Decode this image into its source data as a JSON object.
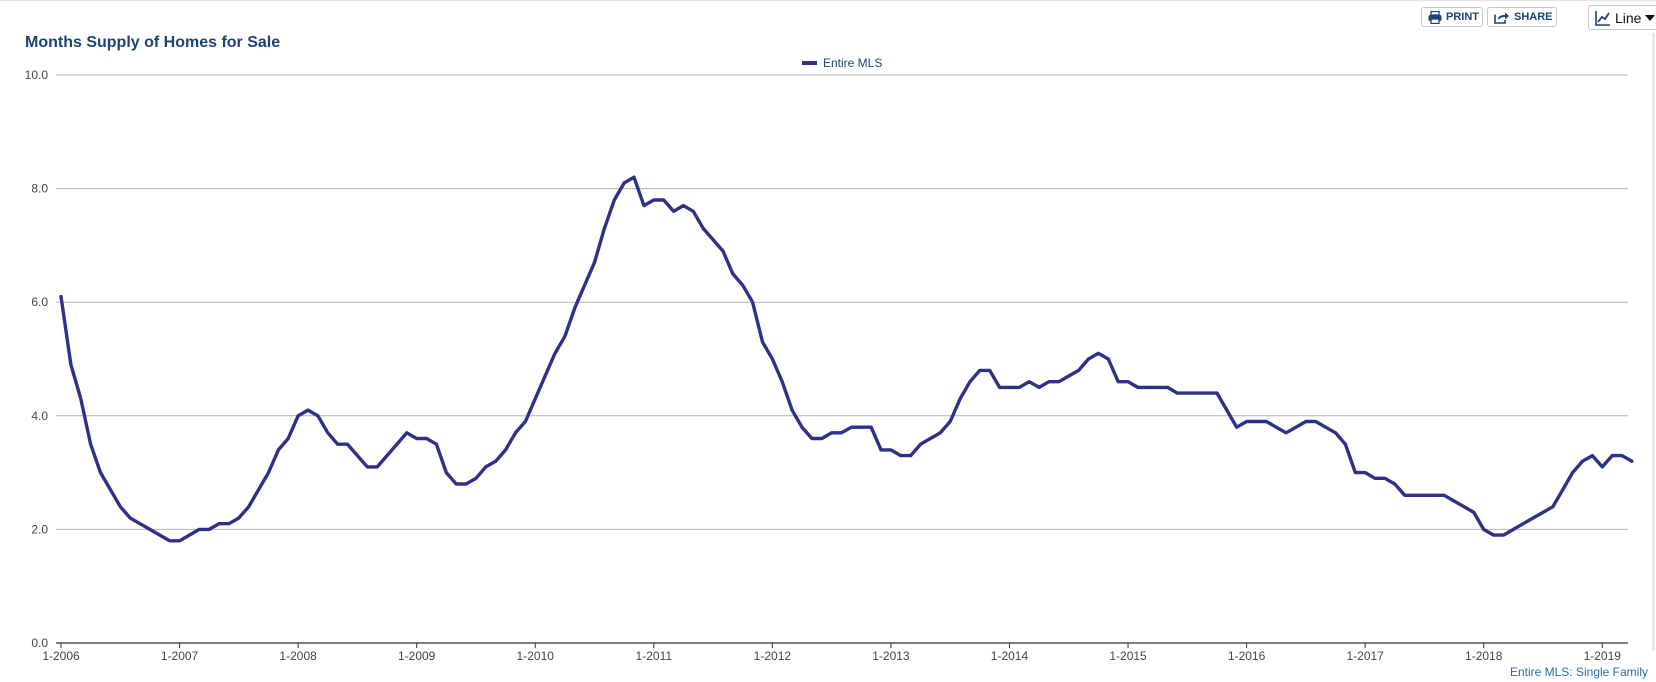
{
  "toolbar": {
    "print_label": "PRINT",
    "share_label": "SHARE",
    "chart_type_label": "Line"
  },
  "footer": {
    "note": "Entire MLS: Single Family"
  },
  "colors": {
    "series": "#2e3188",
    "title": "#1d4472",
    "grid": "#b3b3b3",
    "footer": "#2a6ca8"
  },
  "icons": {
    "print": "printer-icon",
    "share": "share-icon",
    "chart_type": "line-chart-icon",
    "dropdown": "caret-down-icon"
  },
  "chart_data": {
    "type": "line",
    "title": "Months Supply of Homes for Sale",
    "xlabel": "",
    "ylabel": "",
    "ylim": [
      0,
      10
    ],
    "yticks": [
      "0.0",
      "2.0",
      "4.0",
      "6.0",
      "8.0",
      "10.0"
    ],
    "xticks": [
      "1-2006",
      "1-2007",
      "1-2008",
      "1-2009",
      "1-2010",
      "1-2011",
      "1-2012",
      "1-2013",
      "1-2014",
      "1-2015",
      "1-2016",
      "1-2017",
      "1-2018",
      "1-2019"
    ],
    "x_start": "1-2006",
    "x_end": "3-2019",
    "grid": true,
    "legend_position": "top-center",
    "series": [
      {
        "name": "Entire MLS",
        "color": "#2e3188",
        "values": [
          6.1,
          4.9,
          4.3,
          3.5,
          3.0,
          2.7,
          2.4,
          2.2,
          2.1,
          2.0,
          1.9,
          1.8,
          1.8,
          1.9,
          2.0,
          2.0,
          2.1,
          2.1,
          2.2,
          2.4,
          2.7,
          3.0,
          3.4,
          3.6,
          4.0,
          4.1,
          4.0,
          3.7,
          3.5,
          3.5,
          3.3,
          3.1,
          3.1,
          3.3,
          3.5,
          3.7,
          3.6,
          3.6,
          3.5,
          3.0,
          2.8,
          2.8,
          2.9,
          3.1,
          3.2,
          3.4,
          3.7,
          3.9,
          4.3,
          4.7,
          5.1,
          5.4,
          5.9,
          6.3,
          6.7,
          7.3,
          7.8,
          8.1,
          8.2,
          7.7,
          7.8,
          7.8,
          7.6,
          7.7,
          7.6,
          7.3,
          7.1,
          6.9,
          6.5,
          6.3,
          6.0,
          5.3,
          5.0,
          4.6,
          4.1,
          3.8,
          3.6,
          3.6,
          3.7,
          3.7,
          3.8,
          3.8,
          3.8,
          3.4,
          3.4,
          3.3,
          3.3,
          3.5,
          3.6,
          3.7,
          3.9,
          4.3,
          4.6,
          4.8,
          4.8,
          4.5,
          4.5,
          4.5,
          4.6,
          4.5,
          4.6,
          4.6,
          4.7,
          4.8,
          5.0,
          5.1,
          5.0,
          4.6,
          4.6,
          4.5,
          4.5,
          4.5,
          4.5,
          4.4,
          4.4,
          4.4,
          4.4,
          4.4,
          4.1,
          3.8,
          3.9,
          3.9,
          3.9,
          3.8,
          3.7,
          3.8,
          3.9,
          3.9,
          3.8,
          3.7,
          3.5,
          3.0,
          3.0,
          2.9,
          2.9,
          2.8,
          2.6,
          2.6,
          2.6,
          2.6,
          2.6,
          2.5,
          2.4,
          2.3,
          2.0,
          1.9,
          1.9,
          2.0,
          2.1,
          2.2,
          2.3,
          2.4,
          2.7,
          3.0,
          3.2,
          3.3,
          3.1,
          3.3,
          3.3,
          3.2
        ]
      }
    ]
  }
}
